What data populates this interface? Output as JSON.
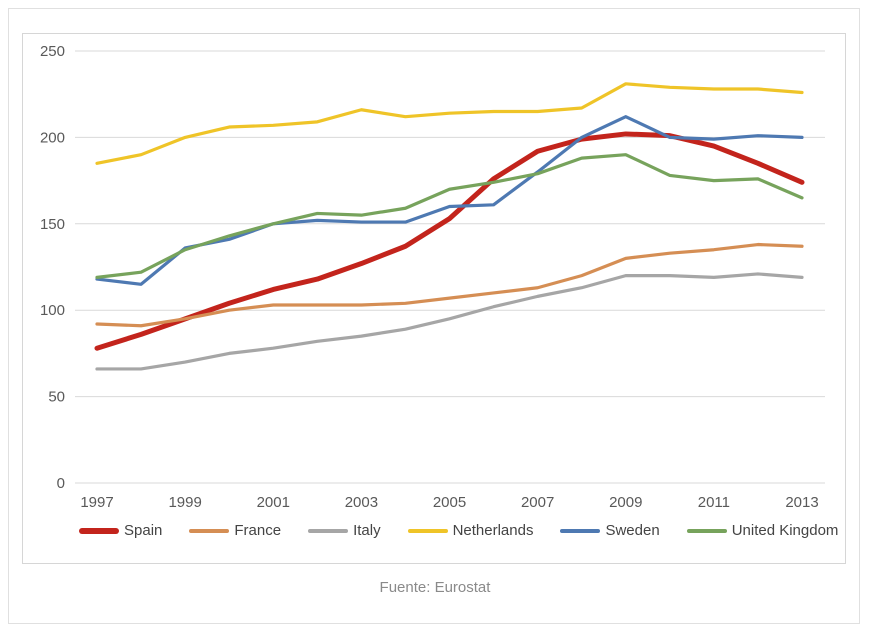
{
  "page": {
    "caption": "Fuente: Eurostat"
  },
  "chart_data": {
    "type": "line",
    "title": "",
    "xlabel": "",
    "ylabel": "",
    "x": [
      1997,
      1998,
      1999,
      2000,
      2001,
      2002,
      2003,
      2004,
      2005,
      2006,
      2007,
      2008,
      2009,
      2010,
      2011,
      2012,
      2013
    ],
    "x_tick_labels": [
      "1997",
      "1999",
      "2001",
      "2003",
      "2005",
      "2007",
      "2009",
      "2011",
      "2013"
    ],
    "ylim": [
      0,
      250
    ],
    "y_ticks": [
      0,
      50,
      100,
      150,
      200,
      250
    ],
    "grid": true,
    "legend_position": "bottom",
    "axis_text_color": "#595959",
    "grid_color": "#d9d9d9",
    "series": [
      {
        "name": "Spain",
        "color": "#c3241c",
        "thick": true,
        "values": [
          78,
          86,
          95,
          104,
          112,
          118,
          127,
          137,
          153,
          176,
          192,
          199,
          202,
          201,
          195,
          185,
          174
        ]
      },
      {
        "name": "France",
        "color": "#d58e54",
        "thick": false,
        "values": [
          92,
          91,
          95,
          100,
          103,
          103,
          103,
          104,
          107,
          110,
          113,
          120,
          130,
          133,
          135,
          138,
          137
        ]
      },
      {
        "name": "Italy",
        "color": "#a6a6a6",
        "thick": false,
        "values": [
          66,
          66,
          70,
          75,
          78,
          82,
          85,
          89,
          95,
          102,
          108,
          113,
          120,
          120,
          119,
          121,
          119
        ]
      },
      {
        "name": "Netherlands",
        "color": "#efc428",
        "thick": false,
        "values": [
          185,
          190,
          200,
          206,
          207,
          209,
          216,
          212,
          214,
          215,
          215,
          217,
          231,
          229,
          228,
          228,
          226
        ]
      },
      {
        "name": "Sweden",
        "color": "#4e79b2",
        "thick": false,
        "values": [
          118,
          115,
          136,
          141,
          150,
          152,
          151,
          151,
          160,
          161,
          180,
          200,
          212,
          200,
          199,
          201,
          200
        ]
      },
      {
        "name": "United Kingdom",
        "color": "#77a35c",
        "thick": false,
        "values": [
          119,
          122,
          135,
          143,
          150,
          156,
          155,
          159,
          170,
          174,
          179,
          188,
          190,
          178,
          175,
          176,
          165
        ]
      }
    ]
  }
}
